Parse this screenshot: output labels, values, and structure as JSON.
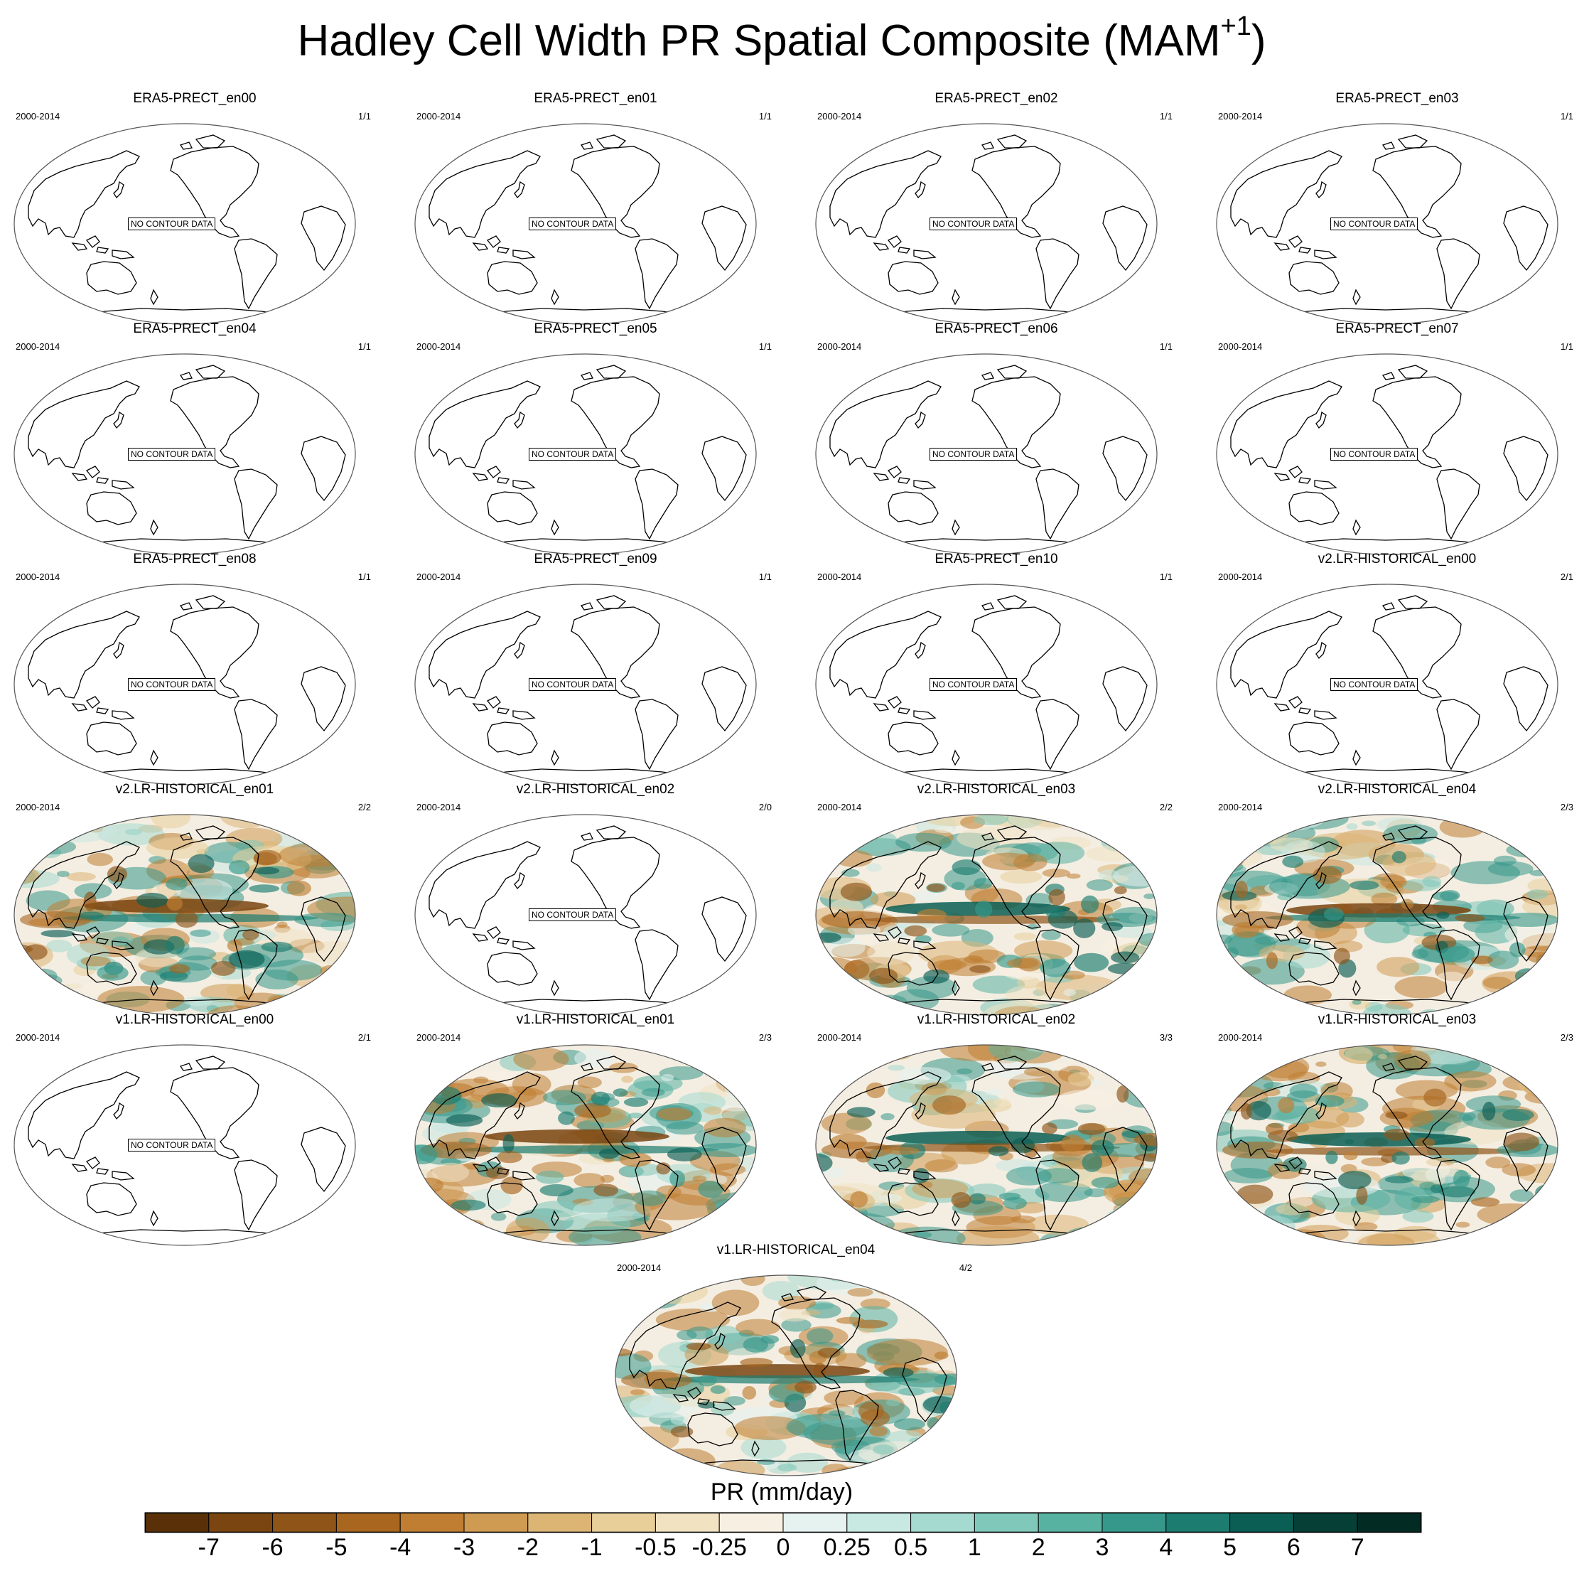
{
  "title": {
    "main": "Hadley Cell Width PR Spatial Composite (MAM",
    "sup": "+1",
    "close": ")"
  },
  "no_contour_label": "NO CONTOUR DATA",
  "panels": [
    {
      "name": "ERA5-PRECT_en00",
      "years": "2000-2014",
      "count": "1/1",
      "has_data": false
    },
    {
      "name": "ERA5-PRECT_en01",
      "years": "2000-2014",
      "count": "1/1",
      "has_data": false
    },
    {
      "name": "ERA5-PRECT_en02",
      "years": "2000-2014",
      "count": "1/1",
      "has_data": false
    },
    {
      "name": "ERA5-PRECT_en03",
      "years": "2000-2014",
      "count": "1/1",
      "has_data": false
    },
    {
      "name": "ERA5-PRECT_en04",
      "years": "2000-2014",
      "count": "1/1",
      "has_data": false
    },
    {
      "name": "ERA5-PRECT_en05",
      "years": "2000-2014",
      "count": "1/1",
      "has_data": false
    },
    {
      "name": "ERA5-PRECT_en06",
      "years": "2000-2014",
      "count": "1/1",
      "has_data": false
    },
    {
      "name": "ERA5-PRECT_en07",
      "years": "2000-2014",
      "count": "1/1",
      "has_data": false
    },
    {
      "name": "ERA5-PRECT_en08",
      "years": "2000-2014",
      "count": "1/1",
      "has_data": false
    },
    {
      "name": "ERA5-PRECT_en09",
      "years": "2000-2014",
      "count": "1/1",
      "has_data": false
    },
    {
      "name": "ERA5-PRECT_en10",
      "years": "2000-2014",
      "count": "1/1",
      "has_data": false
    },
    {
      "name": "v2.LR-HISTORICAL_en00",
      "years": "2000-2014",
      "count": "2/1",
      "has_data": false
    },
    {
      "name": "v2.LR-HISTORICAL_en01",
      "years": "2000-2014",
      "count": "2/2",
      "has_data": true
    },
    {
      "name": "v2.LR-HISTORICAL_en02",
      "years": "2000-2014",
      "count": "2/0",
      "has_data": false
    },
    {
      "name": "v2.LR-HISTORICAL_en03",
      "years": "2000-2014",
      "count": "2/2",
      "has_data": true
    },
    {
      "name": "v2.LR-HISTORICAL_en04",
      "years": "2000-2014",
      "count": "2/3",
      "has_data": true
    },
    {
      "name": "v1.LR-HISTORICAL_en00",
      "years": "2000-2014",
      "count": "2/1",
      "has_data": false
    },
    {
      "name": "v1.LR-HISTORICAL_en01",
      "years": "2000-2014",
      "count": "2/3",
      "has_data": true
    },
    {
      "name": "v1.LR-HISTORICAL_en02",
      "years": "2000-2014",
      "count": "3/3",
      "has_data": true
    },
    {
      "name": "v1.LR-HISTORICAL_en03",
      "years": "2000-2014",
      "count": "2/3",
      "has_data": true
    },
    {
      "name": "v1.LR-HISTORICAL_en04",
      "years": "2000-2014",
      "count": "4/2",
      "has_data": true
    }
  ],
  "colorbar": {
    "label": "PR (mm/day)",
    "ticks": [
      "-7",
      "-6",
      "-5",
      "-4",
      "-3",
      "-2",
      "-1",
      "-0.5",
      "-0.25",
      "0",
      "0.25",
      "0.5",
      "1",
      "2",
      "3",
      "4",
      "5",
      "6",
      "7"
    ],
    "colors": [
      "#5a3008",
      "#7a4510",
      "#8f5418",
      "#a8661f",
      "#bf7e32",
      "#cf9a52",
      "#dcb575",
      "#e8cf9a",
      "#f1e2c2",
      "#f7f0e2",
      "#e6f2f0",
      "#c8e8e2",
      "#a5dad0",
      "#80c9ba",
      "#58b2a2",
      "#36988a",
      "#1c7c70",
      "#0b5e54",
      "#053f36",
      "#022b23"
    ]
  }
}
